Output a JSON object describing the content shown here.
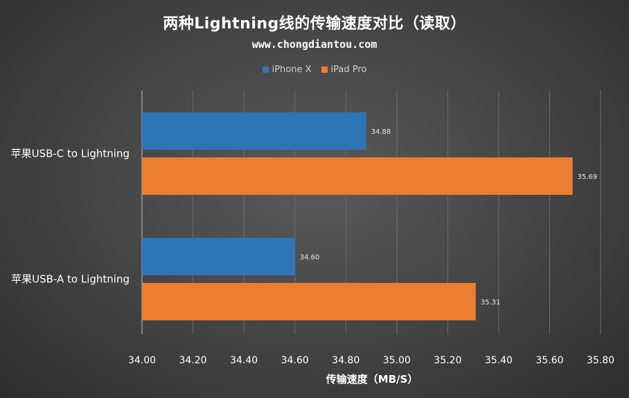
{
  "chart_data": {
    "type": "bar",
    "orientation": "horizontal",
    "title": "两种Lightning线的传输速度对比（读取）",
    "subtitle": "www.chongdiantou.com",
    "categories": [
      "苹果USB-C to Lightning",
      "苹果USB-A to Lightning"
    ],
    "series": [
      {
        "name": "iPhone X",
        "color": "#2e75b6",
        "values": [
          34.88,
          34.6
        ],
        "labels": [
          "34.88",
          "34.60"
        ]
      },
      {
        "name": "iPad Pro",
        "color": "#ed7d31",
        "values": [
          35.69,
          35.31
        ],
        "labels": [
          "35.69",
          "35.31"
        ]
      }
    ],
    "xlabel": "传输速度（MB/S）",
    "ylabel": "",
    "xlim": [
      34.0,
      35.8
    ],
    "xticks": [
      34.0,
      34.2,
      34.4,
      34.6,
      34.8,
      35.0,
      35.2,
      35.4,
      35.6,
      35.8
    ],
    "xtick_labels": [
      "34.00",
      "34.20",
      "34.40",
      "34.60",
      "34.80",
      "35.00",
      "35.20",
      "35.40",
      "35.60",
      "35.80"
    ],
    "grid": true,
    "legend_position": "top-center"
  }
}
